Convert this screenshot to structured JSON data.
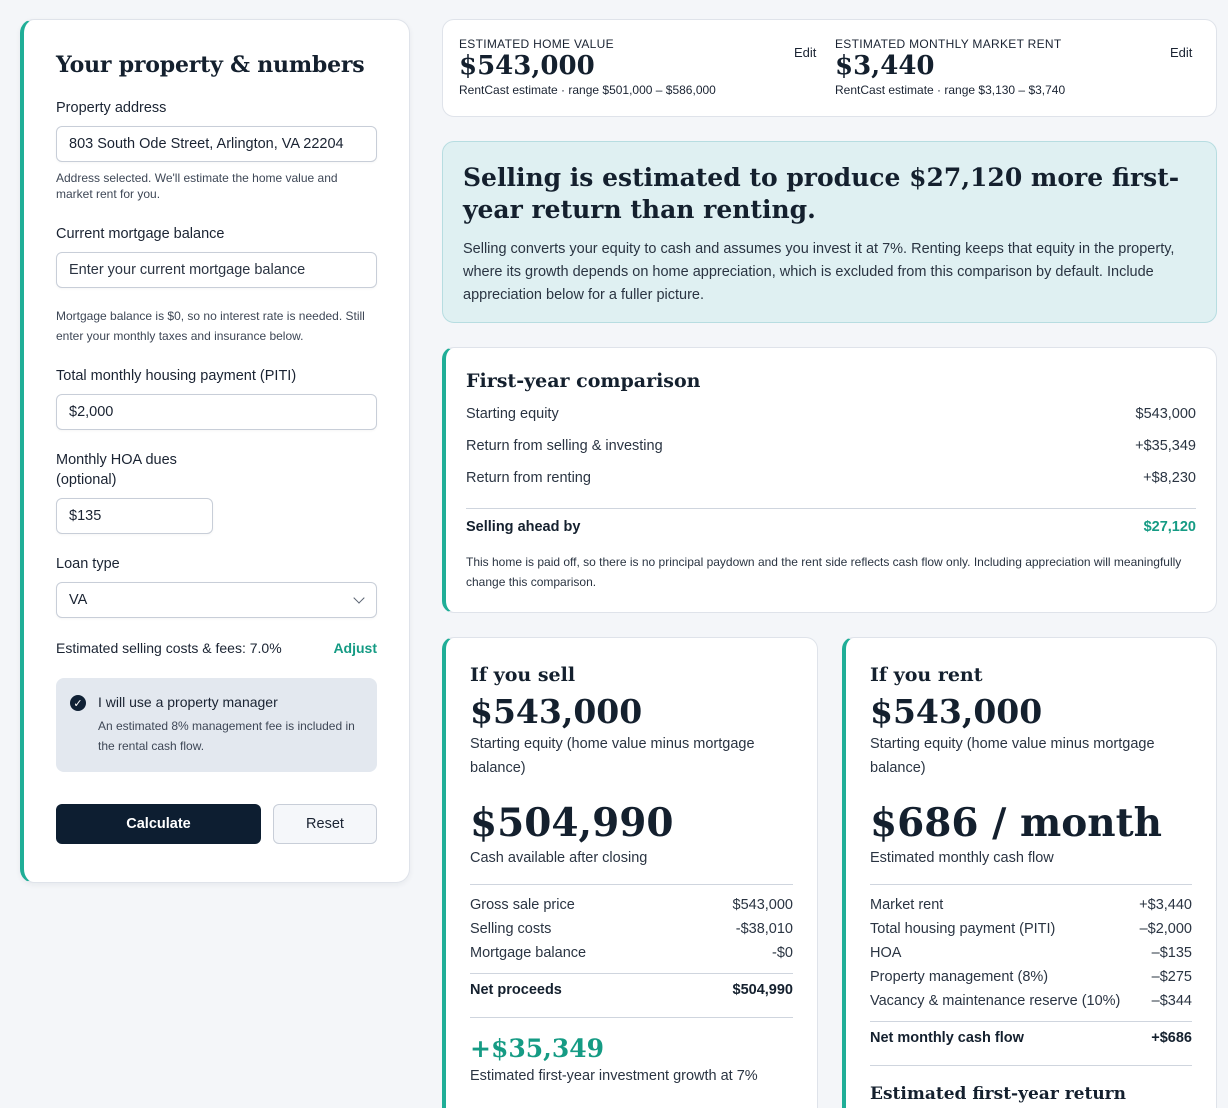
{
  "form": {
    "title": "Your property & numbers",
    "address_label": "Property address",
    "address_value": "803 South Ode Street, Arlington, VA 22204",
    "address_help": "Address selected. We'll estimate the home value and market rent for you.",
    "mortgage_label": "Current mortgage balance",
    "mortgage_placeholder": "Enter your current mortgage balance",
    "mortgage_help": "Mortgage balance is $0, so no interest rate is needed. Still enter your monthly taxes and insurance below.",
    "piti_label": "Total monthly housing payment (PITI)",
    "piti_value": "$2,000",
    "hoa_label": "Monthly HOA dues",
    "hoa_sub": "(optional)",
    "hoa_value": "$135",
    "loan_label": "Loan type",
    "loan_value": "VA",
    "costs_text": "Estimated selling costs & fees: 7.0%",
    "adjust_label": "Adjust",
    "pm_title": "I will use a property manager",
    "pm_desc": "An estimated 8% management fee is included in the rental cash flow.",
    "calculate_label": "Calculate",
    "reset_label": "Reset"
  },
  "estimates": {
    "home": {
      "label": "ESTIMATED HOME VALUE",
      "value": "$543,000",
      "range": "RentCast estimate · range $501,000 – $586,000",
      "edit": "Edit"
    },
    "rent": {
      "label": "ESTIMATED MONTHLY MARKET RENT",
      "value": "$3,440",
      "range": "RentCast estimate · range $3,130 – $3,740",
      "edit": "Edit"
    }
  },
  "headline": {
    "title": "Selling is estimated to produce $27,120 more first-year return than renting.",
    "body": "Selling converts your equity to cash and assumes you invest it at 7%. Renting keeps that equity in the property, where its growth depends on home appreciation, which is excluded from this comparison by default. Include appreciation below for a fuller picture."
  },
  "comparison": {
    "title": "First-year comparison",
    "rows": [
      {
        "label": "Starting equity",
        "value": "$543,000"
      },
      {
        "label": "Return from selling & investing",
        "value": "+$35,349"
      },
      {
        "label": "Return from renting",
        "value": "+$8,230"
      }
    ],
    "total_label": "Selling ahead by",
    "total_value": "$27,120",
    "note": "This home is paid off, so there is no principal paydown and the rent side reflects cash flow only. Including appreciation will meaningfully change this comparison."
  },
  "sell": {
    "title": "If you sell",
    "equity": "$543,000",
    "equity_caption": "Starting equity (home value minus mortgage balance)",
    "cash": "$504,990",
    "cash_caption": "Cash available after closing",
    "rows": [
      {
        "label": "Gross sale price",
        "value": "$543,000"
      },
      {
        "label": "Selling costs",
        "value": "-$38,010"
      },
      {
        "label": "Mortgage balance",
        "value": "-$0"
      }
    ],
    "total_label": "Net proceeds",
    "total_value": "$504,990",
    "growth": "+$35,349",
    "growth_caption": "Estimated first-year investment growth at 7%"
  },
  "rent": {
    "title": "If you rent",
    "equity": "$543,000",
    "equity_caption": "Starting equity (home value minus mortgage balance)",
    "cashflow": "$686 / month",
    "cashflow_caption": "Estimated monthly cash flow",
    "rows": [
      {
        "label": "Market rent",
        "value": "+$3,440"
      },
      {
        "label": "Total housing payment (PITI)",
        "value": "–$2,000"
      },
      {
        "label": "HOA",
        "value": "–$135"
      },
      {
        "label": "Property management (8%)",
        "value": "–$275"
      },
      {
        "label": "Vacancy & maintenance reserve (10%)",
        "value": "–$344"
      }
    ],
    "total_label": "Net monthly cash flow",
    "total_value": "+$686",
    "subhead": "Estimated first-year return"
  }
}
